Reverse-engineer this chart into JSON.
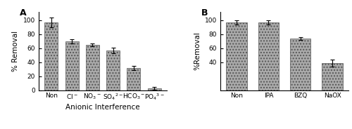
{
  "panel_A": {
    "categories": [
      "Non",
      "Cl$^-$",
      "NO$_3$$^-$",
      "SO$_4$$^{2-}$",
      "HCO$_3$$^-$",
      "PO$_4$$^{3-}$"
    ],
    "values": [
      97,
      70,
      65,
      57,
      32,
      3
    ],
    "errors": [
      7,
      3,
      2,
      4,
      3,
      2
    ],
    "xlabel": "Anionic Interference",
    "ylabel": "% Removal",
    "ylim": [
      0,
      112
    ],
    "yticks": [
      0,
      20,
      40,
      60,
      80,
      100
    ],
    "label": "A"
  },
  "panel_B": {
    "categories": [
      "Non",
      "IPA",
      "BZQ",
      "NaOX"
    ],
    "values": [
      97,
      97,
      74,
      39
    ],
    "errors": [
      3,
      3,
      2,
      5
    ],
    "xlabel": "",
    "ylabel": "%Removal",
    "ylim": [
      0,
      112
    ],
    "yticks": [
      40,
      60,
      80,
      100
    ],
    "label": "B"
  },
  "bar_color": "#aaaaaa",
  "bar_hatch": "....",
  "bar_edgecolor": "#555555",
  "bar_width": 0.65,
  "tick_fontsize": 6.5,
  "label_fontsize": 7.5,
  "panel_label_fontsize": 9,
  "fig_width": 5.0,
  "fig_height": 1.84
}
